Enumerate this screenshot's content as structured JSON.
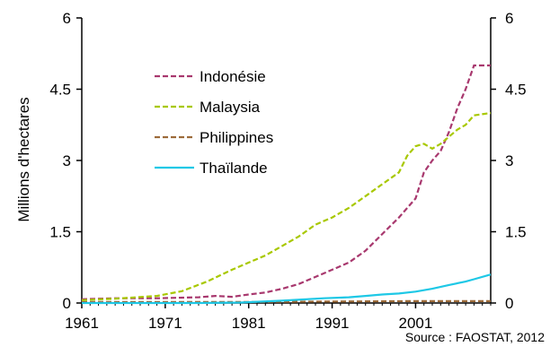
{
  "chart_data": {
    "type": "line",
    "ylabel": "Millions d'hectares",
    "xlabel": "",
    "xlim": [
      1961,
      2010
    ],
    "ylim": [
      0,
      6
    ],
    "x_ticks": [
      1961,
      1971,
      1981,
      1991,
      2001
    ],
    "x_tick_labels": [
      "1961",
      "1971",
      "1981",
      "1991",
      "2001"
    ],
    "y_ticks": [
      0,
      1.5,
      3,
      4.5,
      6
    ],
    "y_tick_labels": [
      "0",
      "1.5",
      "3",
      "4.5",
      "6"
    ],
    "secondary_y_axis": true,
    "legend_position": "upper-left",
    "series": [
      {
        "name": "Indonésie",
        "color": "#a8386e",
        "dash": true,
        "points": [
          [
            1961,
            0.08
          ],
          [
            1965,
            0.1
          ],
          [
            1970,
            0.1
          ],
          [
            1975,
            0.12
          ],
          [
            1977,
            0.15
          ],
          [
            1979,
            0.13
          ],
          [
            1981,
            0.18
          ],
          [
            1983,
            0.22
          ],
          [
            1985,
            0.3
          ],
          [
            1987,
            0.4
          ],
          [
            1989,
            0.55
          ],
          [
            1991,
            0.7
          ],
          [
            1993,
            0.85
          ],
          [
            1995,
            1.1
          ],
          [
            1997,
            1.45
          ],
          [
            1999,
            1.8
          ],
          [
            2000,
            2.0
          ],
          [
            2001,
            2.2
          ],
          [
            2002,
            2.75
          ],
          [
            2003,
            3.0
          ],
          [
            2004,
            3.2
          ],
          [
            2005,
            3.6
          ],
          [
            2006,
            4.1
          ],
          [
            2007,
            4.5
          ],
          [
            2008,
            5.0
          ],
          [
            2010,
            5.0
          ]
        ]
      },
      {
        "name": "Malaysia",
        "color": "#a8c800",
        "dash": true,
        "points": [
          [
            1961,
            0.06
          ],
          [
            1965,
            0.09
          ],
          [
            1970,
            0.15
          ],
          [
            1973,
            0.25
          ],
          [
            1976,
            0.45
          ],
          [
            1979,
            0.7
          ],
          [
            1981,
            0.85
          ],
          [
            1983,
            1.0
          ],
          [
            1985,
            1.2
          ],
          [
            1987,
            1.4
          ],
          [
            1989,
            1.65
          ],
          [
            1991,
            1.8
          ],
          [
            1993,
            2.0
          ],
          [
            1995,
            2.25
          ],
          [
            1997,
            2.5
          ],
          [
            1999,
            2.75
          ],
          [
            2000,
            3.1
          ],
          [
            2001,
            3.3
          ],
          [
            2002,
            3.35
          ],
          [
            2003,
            3.25
          ],
          [
            2004,
            3.35
          ],
          [
            2005,
            3.5
          ],
          [
            2006,
            3.65
          ],
          [
            2007,
            3.75
          ],
          [
            2008,
            3.95
          ],
          [
            2010,
            4.0
          ]
        ]
      },
      {
        "name": "Philippines",
        "color": "#9c6b3a",
        "dash": true,
        "points": [
          [
            1961,
            0.02
          ],
          [
            1980,
            0.02
          ],
          [
            1990,
            0.03
          ],
          [
            2000,
            0.04
          ],
          [
            2010,
            0.04
          ]
        ]
      },
      {
        "name": "Thaïlande",
        "color": "#1ec8e6",
        "dash": false,
        "points": [
          [
            1961,
            0.0
          ],
          [
            1975,
            0.0
          ],
          [
            1980,
            0.01
          ],
          [
            1985,
            0.05
          ],
          [
            1990,
            0.1
          ],
          [
            1993,
            0.12
          ],
          [
            1995,
            0.15
          ],
          [
            1997,
            0.18
          ],
          [
            1999,
            0.2
          ],
          [
            2001,
            0.24
          ],
          [
            2003,
            0.3
          ],
          [
            2005,
            0.38
          ],
          [
            2007,
            0.45
          ],
          [
            2008,
            0.5
          ],
          [
            2010,
            0.6
          ]
        ]
      }
    ]
  },
  "source": "Source : FAOSTAT, 2012"
}
